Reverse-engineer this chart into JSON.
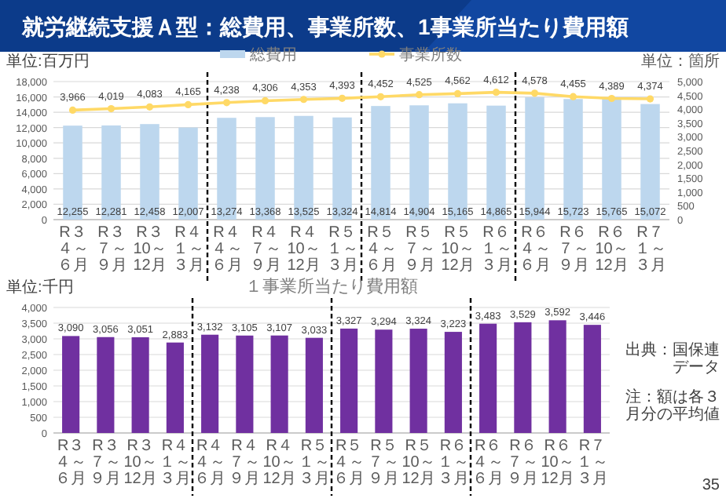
{
  "chart_data": [
    {
      "type": "bar",
      "title": "就労継続支援Ａ型：総費用、事業所数、1事業所当たり費用額",
      "ylabel": "単位:百万円",
      "y2label": "単位：箇所",
      "categories": [
        "R３４～６月",
        "R３７～９月",
        "R３10～12月",
        "R４１～３月",
        "R４４～６月",
        "R４７～９月",
        "R４10～12月",
        "R５１～３月",
        "R５４～６月",
        "R５７～９月",
        "R５10～12月",
        "R６１～３月",
        "R６４～６月",
        "R６７～９月",
        "R６10～12月",
        "R７１～３月"
      ],
      "series": [
        {
          "name": "総費用",
          "color": "#bdd7ee",
          "values": [
            12255,
            12281,
            12458,
            12007,
            13274,
            13368,
            13525,
            13324,
            14814,
            14904,
            15165,
            14865,
            15944,
            15723,
            15765,
            15072
          ],
          "value_labels": [
            "12,255",
            "12,281",
            "12,458",
            "12,007",
            "13,274",
            "13,368",
            "13,525",
            "13,324",
            "14,814",
            "14,904",
            "15,165",
            "14,865",
            "15,944",
            "15,723",
            "15,765",
            "15,072"
          ]
        },
        {
          "name": "事業所数",
          "type": "line",
          "axis": "y2",
          "color": "#ffd966",
          "marker": "circle",
          "values": [
            3966,
            4019,
            4083,
            4165,
            4238,
            4306,
            4353,
            4393,
            4452,
            4525,
            4562,
            4612,
            4578,
            4455,
            4389,
            4374
          ],
          "value_labels": [
            "3,966",
            "4,019",
            "4,083",
            "4,165",
            "4,238",
            "4,306",
            "4,353",
            "4,393",
            "4,452",
            "4,525",
            "4,562",
            "4,612",
            "4,578",
            "4,455",
            "4,389",
            "4,374"
          ]
        }
      ],
      "ylim": [
        0,
        18000
      ],
      "yticks": [
        {
          "value": 0,
          "label": "0"
        },
        {
          "value": 2000,
          "label": "2,000"
        },
        {
          "value": 4000,
          "label": "4,000"
        },
        {
          "value": 6000,
          "label": "6,000"
        },
        {
          "value": 8000,
          "label": "8,000"
        },
        {
          "value": 10000,
          "label": "10,000"
        },
        {
          "value": 12000,
          "label": "12,000"
        },
        {
          "value": 14000,
          "label": "14,000"
        },
        {
          "value": 16000,
          "label": "16,000"
        },
        {
          "value": 18000,
          "label": "18,000"
        }
      ],
      "y2lim": [
        0,
        5000
      ],
      "y2ticks": [
        {
          "value": 0,
          "label": "0"
        },
        {
          "value": 500,
          "label": "500"
        },
        {
          "value": 1000,
          "label": "1,000"
        },
        {
          "value": 1500,
          "label": "1,500"
        },
        {
          "value": 2000,
          "label": "2,000"
        },
        {
          "value": 2500,
          "label": "2,500"
        },
        {
          "value": 3000,
          "label": "3,000"
        },
        {
          "value": 3500,
          "label": "3,500"
        },
        {
          "value": 4000,
          "label": "4,000"
        },
        {
          "value": 4500,
          "label": "4,500"
        },
        {
          "value": 5000,
          "label": "5,000"
        }
      ],
      "grid": "y",
      "legend": "top"
    },
    {
      "type": "bar",
      "title": "１事業所当たり費用額",
      "ylabel": "単位:千円",
      "categories": [
        "R３４～６月",
        "R３７～９月",
        "R３10～12月",
        "R４１～３月",
        "R４４～６月",
        "R４７～９月",
        "R４10～12月",
        "R５１～３月",
        "R５４～６月",
        "R５７～９月",
        "R５10～12月",
        "R６１～３月",
        "R６４～６月",
        "R６７～９月",
        "R６10～12月",
        "R７１～３月"
      ],
      "series": [
        {
          "color": "#7030a0",
          "values": [
            3090,
            3056,
            3051,
            2883,
            3132,
            3105,
            3107,
            3033,
            3327,
            3294,
            3324,
            3223,
            3483,
            3529,
            3592,
            3446
          ],
          "value_labels": [
            "3,090",
            "3,056",
            "3,051",
            "2,883",
            "3,132",
            "3,105",
            "3,107",
            "3,033",
            "3,327",
            "3,294",
            "3,324",
            "3,223",
            "3,483",
            "3,529",
            "3,592",
            "3,446"
          ]
        }
      ],
      "ylim": [
        0,
        4000
      ],
      "yticks": [
        {
          "value": 0,
          "label": "0"
        },
        {
          "value": 500,
          "label": "500"
        },
        {
          "value": 1000,
          "label": "1,000"
        },
        {
          "value": 1500,
          "label": "1,500"
        },
        {
          "value": 2000,
          "label": "2,000"
        },
        {
          "value": 2500,
          "label": "2,500"
        },
        {
          "value": 3000,
          "label": "3,000"
        },
        {
          "value": 3500,
          "label": "3,500"
        },
        {
          "value": 4000,
          "label": "4,000"
        }
      ],
      "grid": "y",
      "annotations": [
        "出典：国保連データ",
        "注：額は各３月分の平均値",
        "35"
      ]
    }
  ]
}
